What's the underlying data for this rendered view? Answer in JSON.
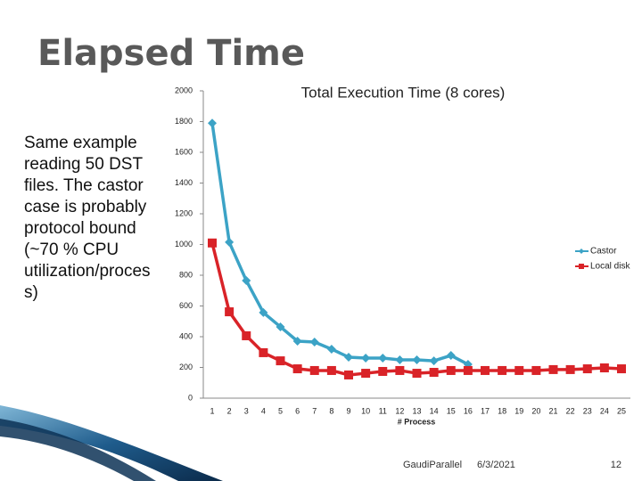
{
  "slide": {
    "title": "Elapsed Time",
    "body": [
      "Same example",
      "reading 50 DST",
      "files. The castor",
      "case is probably",
      "protocol bound",
      "(~70 % CPU",
      "utilization/proces",
      "s)"
    ],
    "footer": {
      "left": "GaudiParallel",
      "date": "6/3/2021",
      "page": "12"
    }
  },
  "chart_data": {
    "type": "line",
    "title": "Total Execution Time (8 cores)",
    "x_label": "# Process",
    "categories": [
      "1",
      "2",
      "3",
      "4",
      "5",
      "6",
      "7",
      "8",
      "9",
      "10",
      "11",
      "12",
      "13",
      "14",
      "15",
      "16",
      "17",
      "18",
      "19",
      "20",
      "21",
      "22",
      "23",
      "24",
      "25"
    ],
    "series": [
      {
        "name": "Castor",
        "color": "#3ca3c6",
        "marker": "diamond",
        "values": [
          1790,
          1015,
          765,
          557,
          464,
          371,
          365,
          319,
          267,
          261,
          261,
          249,
          249,
          243,
          278,
          220,
          null,
          null,
          null,
          null,
          null,
          null,
          null,
          null,
          null
        ]
      },
      {
        "name": "Local disk",
        "color": "#d92328",
        "marker": "square",
        "values": [
          1010,
          562,
          406,
          296,
          243,
          191,
          180,
          180,
          151,
          162,
          174,
          180,
          162,
          168,
          180,
          180,
          180,
          180,
          180,
          180,
          186,
          186,
          191,
          197,
          191
        ]
      }
    ],
    "ylim": [
      0,
      2000
    ],
    "yticks": [
      0,
      200,
      400,
      600,
      800,
      1000,
      1200,
      1400,
      1600,
      1800,
      2000
    ],
    "grid": false,
    "legend": "right"
  }
}
